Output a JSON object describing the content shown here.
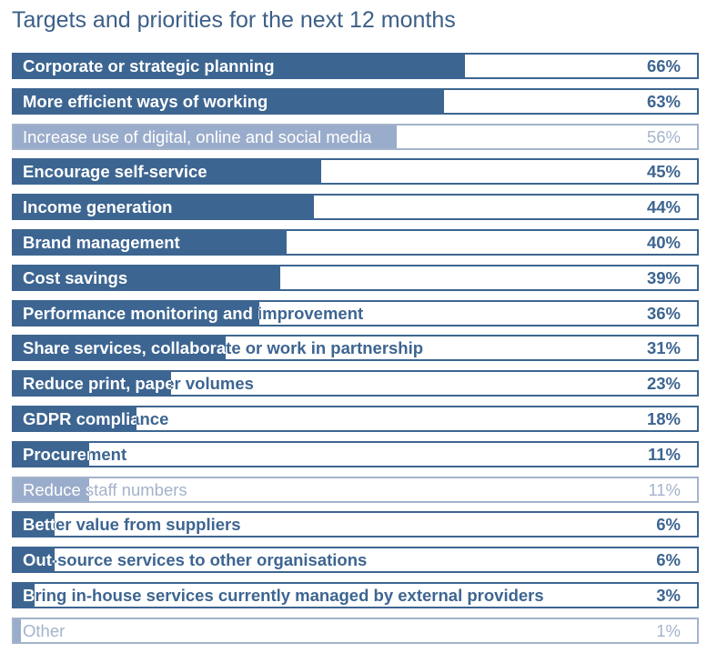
{
  "chart_data": {
    "type": "bar",
    "orientation": "horizontal",
    "title": "Targets and priorities for the next 12 months",
    "xlim": [
      0,
      100
    ],
    "colors": {
      "bar": "#3d6591",
      "muted_bar": "#9aaccb",
      "muted_text": "#a3b3cb"
    },
    "categories": [
      "Corporate or strategic planning",
      "More efficient ways of working",
      "Increase use of digital, online and social media",
      "Encourage self-service",
      "Income generation",
      "Brand management",
      "Cost savings",
      "Performance monitoring and improvement",
      "Share services, collaborate or work in partnership",
      "Reduce print, paper volumes",
      "GDPR compliance",
      "Procurement",
      "Reduce staff numbers",
      "Better value from suppliers",
      "Out-source services to other organisations",
      "Bring in-house services currently managed by external providers",
      "Other"
    ],
    "values": [
      66,
      63,
      56,
      45,
      44,
      40,
      39,
      36,
      31,
      23,
      18,
      11,
      11,
      6,
      6,
      3,
      1
    ],
    "value_labels": [
      "66%",
      "63%",
      "56%",
      "45%",
      "44%",
      "40%",
      "39%",
      "36%",
      "31%",
      "23%",
      "18%",
      "11%",
      "11%",
      "6%",
      "6%",
      "3%",
      "1%"
    ],
    "muted": [
      false,
      false,
      true,
      false,
      false,
      false,
      false,
      false,
      false,
      false,
      false,
      false,
      true,
      false,
      false,
      false,
      true
    ]
  }
}
